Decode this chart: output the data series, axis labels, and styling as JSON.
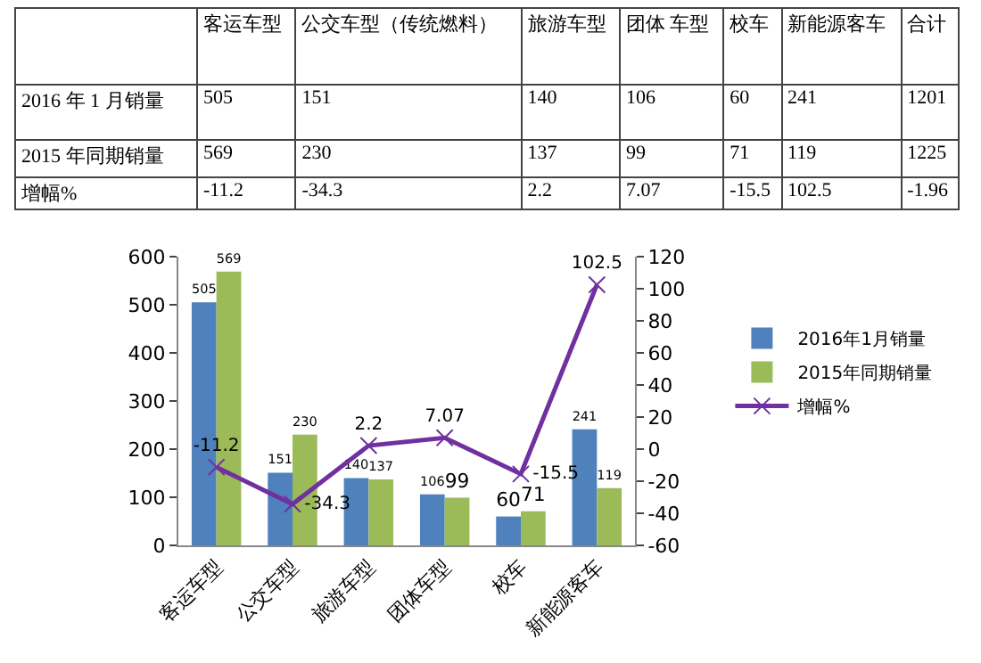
{
  "chart_data": {
    "type": "bar",
    "categories": [
      "客运车型",
      "公交车型",
      "旅游车型",
      "团体车型",
      "校车",
      "新能源客车"
    ],
    "series": [
      {
        "name": "2016年1月销量",
        "color": "#4f81bd",
        "values": [
          505,
          151,
          140,
          106,
          60,
          241
        ]
      },
      {
        "name": "2015年同期销量",
        "color": "#9bbb59",
        "values": [
          569,
          230,
          137,
          99,
          71,
          119
        ]
      },
      {
        "name": "增幅%",
        "type": "line",
        "axis": "y2",
        "color": "#7030a0",
        "marker": "cross",
        "values": [
          -11.2,
          -34.3,
          2.2,
          7.07,
          -15.5,
          102.5
        ]
      }
    ],
    "ylim": [
      0,
      600
    ],
    "yticks": [
      0,
      100,
      200,
      300,
      400,
      500,
      600
    ],
    "y2lim": [
      -60,
      120
    ],
    "y2ticks": [
      -60,
      -40,
      -20,
      0,
      20,
      40,
      60,
      80,
      100,
      120
    ],
    "data_labels": true,
    "grid": false,
    "legend": "right",
    "annotations": [
      "客运车型",
      "公交车型（传统燃料）",
      "旅游车型",
      "团体 车型",
      "校车",
      "新能源客车",
      "合计",
      "2016 年 1 月销量",
      "505",
      "151",
      "140",
      "106",
      "60",
      "241",
      "1201",
      "2015 年同期销量",
      "569",
      "230",
      "137",
      "99",
      "71",
      "119",
      "1225",
      "增幅%",
      "-11.2",
      "-34.3",
      "2.2",
      "7.07",
      "-15.5",
      "102.5",
      "-1.96"
    ]
  }
}
